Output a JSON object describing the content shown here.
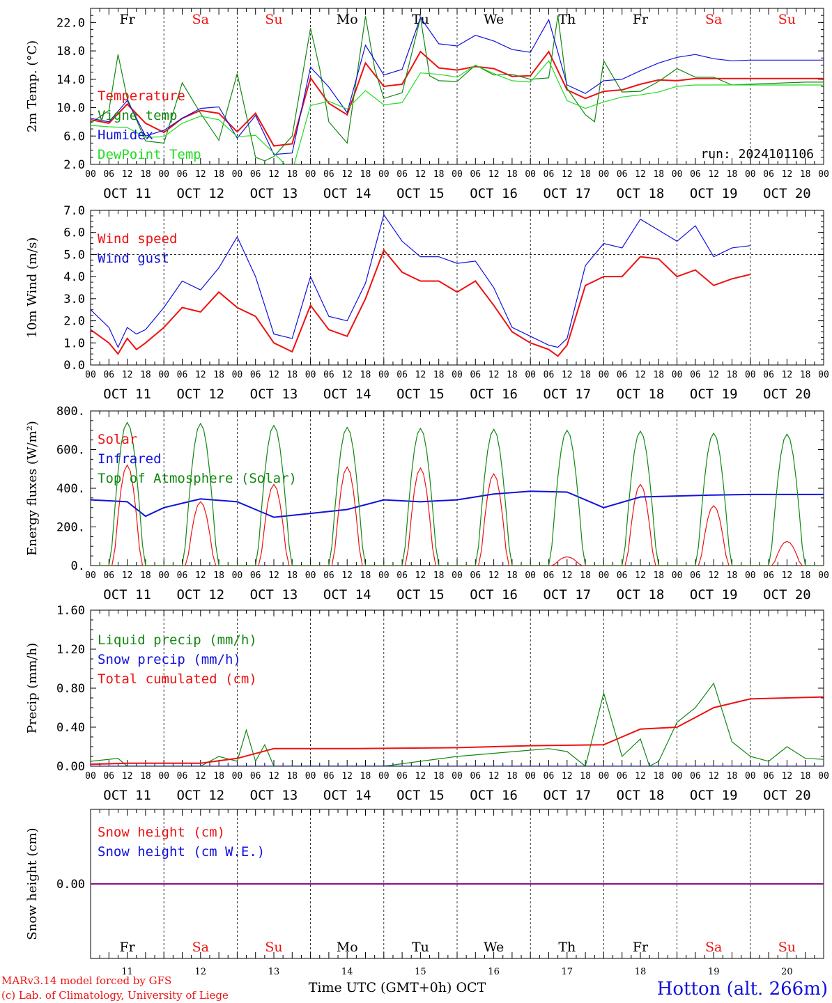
{
  "run_label": "run: 2024101106",
  "time_axis": {
    "hour_labels": [
      "00",
      "06",
      "12",
      "18"
    ],
    "end_hour_label": "00",
    "date_labels": [
      "OCT 11",
      "OCT 12",
      "OCT 13",
      "OCT 14",
      "OCT 15",
      "OCT 16",
      "OCT 17",
      "OCT 18",
      "OCT 19",
      "OCT 20"
    ],
    "weekdays": [
      "Fr",
      "Sa",
      "Su",
      "Mo",
      "Tu",
      "We",
      "Th",
      "Fr",
      "Sa",
      "Su"
    ],
    "weekend_flags": [
      false,
      true,
      true,
      false,
      false,
      false,
      false,
      false,
      true,
      true
    ],
    "day_numbers": [
      "11",
      "12",
      "13",
      "14",
      "15",
      "16",
      "17",
      "18",
      "19",
      "20"
    ],
    "xlabel": "Time UTC (GMT+0h)",
    "month": "OCT"
  },
  "footer": {
    "credit_line1": "MARv3.14 model forced by GFS",
    "credit_line2": "(c) Lab. of Climatology, University of Liege",
    "location": "Hotton (alt. 266m)"
  },
  "colors": {
    "red": "#ee1111",
    "green": "#118811",
    "blue": "#1111dd",
    "lightgreen": "#22dd22",
    "purple": "#881188",
    "axis": "#000000"
  },
  "chart_data": [
    {
      "id": "temperature",
      "type": "line",
      "ylabel": "2m Temp. (°C)",
      "ylim": [
        2,
        24
      ],
      "yticks": [
        2,
        6,
        10,
        14,
        18,
        22
      ],
      "ytick_labels": [
        "2.0",
        "6.0",
        "10.0",
        "14.0",
        "18.0",
        "22.0"
      ],
      "x_unit": "hours since OCT 11 00 UTC",
      "series": [
        {
          "name": "Temperature",
          "color": "red",
          "x": [
            0,
            6,
            12,
            18,
            24,
            30,
            36,
            42,
            48,
            54,
            60,
            66,
            72,
            78,
            84,
            90,
            96,
            102,
            108,
            114,
            120,
            126,
            132,
            138,
            144,
            150,
            156,
            162,
            168,
            174,
            180,
            186,
            192,
            198,
            204,
            210,
            216,
            222,
            228,
            234,
            240
          ],
          "y": [
            8.3,
            7.8,
            10.5,
            7.8,
            6.5,
            8.5,
            9.6,
            9.2,
            6.6,
            9.2,
            4.6,
            4.9,
            14.2,
            10.6,
            9.0,
            16.3,
            13.0,
            13.3,
            17.9,
            15.6,
            15.3,
            15.8,
            15.5,
            14.4,
            14.5,
            17.9,
            12.5,
            11.3,
            12.3,
            12.5,
            13.3,
            13.9,
            13.8,
            14.1,
            14.1,
            14.1,
            14.1,
            14.1,
            14.1,
            14.1,
            14.1
          ]
        },
        {
          "name": "Vigne temp",
          "color": "green",
          "x": [
            0,
            6,
            9,
            12,
            18,
            24,
            30,
            36,
            42,
            48,
            54,
            57,
            60,
            66,
            72,
            75,
            78,
            84,
            90,
            93,
            96,
            102,
            108,
            111,
            114,
            120,
            126,
            132,
            138,
            144,
            150,
            153,
            156,
            162,
            165,
            168,
            174,
            180,
            186,
            192,
            198,
            204,
            210,
            216,
            222,
            228,
            234,
            240
          ],
          "y": [
            7.8,
            9.6,
            17.5,
            11.3,
            5.3,
            5.0,
            13.5,
            9.2,
            5.4,
            14.8,
            3.0,
            2.5,
            3.1,
            6.0,
            21.2,
            15.5,
            8.0,
            5.0,
            22.9,
            15.5,
            11.3,
            12.1,
            22.7,
            14.5,
            13.8,
            13.7,
            16.0,
            14.6,
            14.7,
            14.0,
            14.2,
            23.0,
            12.7,
            9.0,
            8.0,
            16.6,
            12.2,
            12.3,
            13.7,
            15.5,
            14.3,
            14.3,
            13.2,
            13.3,
            13.4,
            13.5,
            13.6,
            13.6
          ]
        },
        {
          "name": "Humidex",
          "color": "blue",
          "x": [
            0,
            6,
            12,
            18,
            24,
            30,
            36,
            42,
            48,
            54,
            60,
            66,
            72,
            78,
            84,
            90,
            96,
            102,
            108,
            114,
            120,
            126,
            132,
            138,
            144,
            150,
            156,
            162,
            168,
            174,
            180,
            186,
            192,
            198,
            204,
            210,
            216,
            222,
            228,
            234,
            240
          ],
          "y": [
            8.5,
            8.0,
            11.0,
            6.0,
            6.8,
            8.5,
            9.9,
            10.1,
            5.7,
            8.9,
            3.4,
            3.6,
            15.7,
            12.9,
            9.3,
            18.8,
            14.6,
            15.4,
            22.7,
            19.0,
            18.7,
            20.2,
            19.4,
            18.2,
            17.8,
            22.4,
            13.2,
            12.0,
            13.8,
            14.0,
            15.2,
            16.3,
            17.1,
            17.5,
            16.9,
            16.6,
            16.7,
            16.7,
            16.7,
            16.7,
            16.7
          ]
        },
        {
          "name": "DewPoint Temp",
          "color": "lightgreen",
          "x": [
            0,
            6,
            12,
            18,
            24,
            30,
            36,
            42,
            48,
            54,
            60,
            66,
            72,
            78,
            84,
            90,
            96,
            102,
            108,
            114,
            120,
            126,
            132,
            138,
            144,
            150,
            156,
            162,
            168,
            174,
            180,
            186,
            192,
            198,
            204,
            210,
            216,
            222,
            228,
            234,
            240
          ],
          "y": [
            7.5,
            7.3,
            7.2,
            5.8,
            5.9,
            7.8,
            8.8,
            8.3,
            5.9,
            6.1,
            3.6,
            1.0,
            10.3,
            10.9,
            9.8,
            12.4,
            10.4,
            10.7,
            14.9,
            14.7,
            14.3,
            16.0,
            14.8,
            13.8,
            13.6,
            16.6,
            11.0,
            9.9,
            10.8,
            11.5,
            11.8,
            12.2,
            13.0,
            13.2,
            13.2,
            13.2,
            13.2,
            13.2,
            13.2,
            13.2,
            13.2
          ]
        }
      ]
    },
    {
      "id": "wind",
      "type": "line",
      "ylabel": "10m Wind (m/s)",
      "ylim": [
        0,
        7
      ],
      "yticks": [
        0,
        1,
        2,
        3,
        4,
        5,
        6,
        7
      ],
      "ytick_labels": [
        "0.0",
        "1.0",
        "2.0",
        "3.0",
        "4.0",
        "5.0",
        "6.0",
        "7.0"
      ],
      "reference_line": 5.0,
      "series": [
        {
          "name": "Wind speed",
          "color": "red",
          "x": [
            0,
            6,
            9,
            12,
            15,
            18,
            24,
            30,
            36,
            42,
            48,
            54,
            60,
            66,
            72,
            78,
            84,
            90,
            96,
            102,
            108,
            114,
            120,
            126,
            132,
            138,
            144,
            150,
            153,
            156,
            162,
            168,
            174,
            180,
            186,
            192,
            198,
            204,
            210,
            216
          ],
          "y": [
            1.6,
            1.0,
            0.5,
            1.2,
            0.7,
            1.0,
            1.7,
            2.6,
            2.4,
            3.3,
            2.6,
            2.2,
            1.0,
            0.6,
            2.7,
            1.6,
            1.3,
            3.0,
            5.2,
            4.2,
            3.8,
            3.8,
            3.3,
            3.8,
            2.7,
            1.5,
            1.0,
            0.7,
            0.4,
            0.9,
            3.6,
            4.0,
            4.0,
            4.9,
            4.8,
            4.0,
            4.3,
            3.6,
            3.9,
            4.1
          ]
        },
        {
          "name": "Wind gust",
          "color": "blue",
          "x": [
            0,
            6,
            9,
            12,
            15,
            18,
            24,
            30,
            36,
            42,
            48,
            54,
            60,
            66,
            72,
            78,
            84,
            90,
            96,
            102,
            108,
            114,
            120,
            126,
            132,
            138,
            144,
            150,
            153,
            156,
            162,
            168,
            174,
            180,
            186,
            192,
            198,
            204,
            210,
            216
          ],
          "y": [
            2.5,
            1.7,
            0.8,
            1.7,
            1.4,
            1.6,
            2.6,
            3.8,
            3.4,
            4.4,
            5.8,
            4.0,
            1.4,
            1.2,
            4.0,
            2.2,
            2.0,
            3.7,
            6.8,
            5.6,
            4.9,
            4.9,
            4.6,
            4.7,
            3.5,
            1.7,
            1.3,
            0.9,
            0.8,
            1.2,
            4.5,
            5.5,
            5.3,
            6.6,
            6.1,
            5.6,
            6.3,
            4.9,
            5.3,
            5.4
          ]
        }
      ]
    },
    {
      "id": "energy",
      "type": "line",
      "ylabel": "Energy fluxes (W/m²)",
      "ylim": [
        0,
        800
      ],
      "yticks": [
        0,
        200,
        400,
        600,
        800
      ],
      "ytick_labels": [
        "0.",
        "200.",
        "400.",
        "600.",
        "800."
      ],
      "series": [
        {
          "name": "Solar",
          "color": "red",
          "daily_peaks": [
            520,
            330,
            420,
            510,
            505,
            475,
            45,
            420,
            310,
            125
          ]
        },
        {
          "name": "Infrared",
          "color": "blue",
          "x": [
            0,
            12,
            18,
            24,
            36,
            48,
            54,
            60,
            72,
            84,
            96,
            108,
            120,
            132,
            144,
            156,
            168,
            180,
            192,
            204,
            216,
            240
          ],
          "y": [
            340,
            330,
            255,
            300,
            345,
            330,
            290,
            250,
            270,
            290,
            340,
            330,
            340,
            370,
            385,
            380,
            300,
            355,
            360,
            365,
            368,
            368
          ]
        },
        {
          "name": "Top of Atmosphere (Solar)",
          "color": "green",
          "daily_peaks": [
            740,
            735,
            725,
            715,
            710,
            705,
            700,
            695,
            685,
            680
          ]
        }
      ]
    },
    {
      "id": "precip",
      "type": "line",
      "ylabel": "Precip (mm/h)",
      "ylim": [
        0,
        1.6
      ],
      "yticks": [
        0,
        0.4,
        0.8,
        1.2,
        1.6
      ],
      "ytick_labels": [
        "0.00",
        "0.40",
        "0.80",
        "1.20",
        "1.60"
      ],
      "series": [
        {
          "name": "Liquid precip (mm/h)",
          "color": "green",
          "x": [
            0,
            9,
            12,
            24,
            36,
            42,
            48,
            51,
            54,
            57,
            60,
            72,
            96,
            120,
            150,
            156,
            162,
            168,
            174,
            180,
            183,
            186,
            192,
            198,
            204,
            210,
            216,
            222,
            228,
            234,
            240
          ],
          "y": [
            0.05,
            0.08,
            0.0,
            0.0,
            0.0,
            0.1,
            0.05,
            0.37,
            0.05,
            0.22,
            0.0,
            0.0,
            0.0,
            0.1,
            0.18,
            0.15,
            0.0,
            0.75,
            0.1,
            0.28,
            0.0,
            0.05,
            0.45,
            0.6,
            0.85,
            0.25,
            0.1,
            0.05,
            0.2,
            0.08,
            0.07
          ]
        },
        {
          "name": "Snow precip (mm/h)",
          "color": "blue",
          "x": [
            0,
            240
          ],
          "y": [
            0,
            0
          ]
        },
        {
          "name": "Total cumulated (cm)",
          "color": "red",
          "x": [
            0,
            12,
            36,
            48,
            60,
            84,
            120,
            144,
            168,
            180,
            192,
            204,
            216,
            228,
            240
          ],
          "y": [
            0.02,
            0.03,
            0.03,
            0.08,
            0.18,
            0.18,
            0.19,
            0.21,
            0.22,
            0.38,
            0.4,
            0.6,
            0.69,
            0.7,
            0.71
          ]
        }
      ]
    },
    {
      "id": "snow",
      "type": "line",
      "ylabel": "Snow height (cm)",
      "ylim": [
        -1,
        1
      ],
      "yticks": [
        0
      ],
      "ytick_labels": [
        "0.00"
      ],
      "series": [
        {
          "name": "Snow height (cm)",
          "color": "red",
          "x": [
            0,
            240
          ],
          "y": [
            0,
            0
          ]
        },
        {
          "name": "Snow height (cm W.E.)",
          "color": "blue",
          "x": [
            0,
            240
          ],
          "y": [
            0,
            0
          ]
        }
      ]
    }
  ]
}
